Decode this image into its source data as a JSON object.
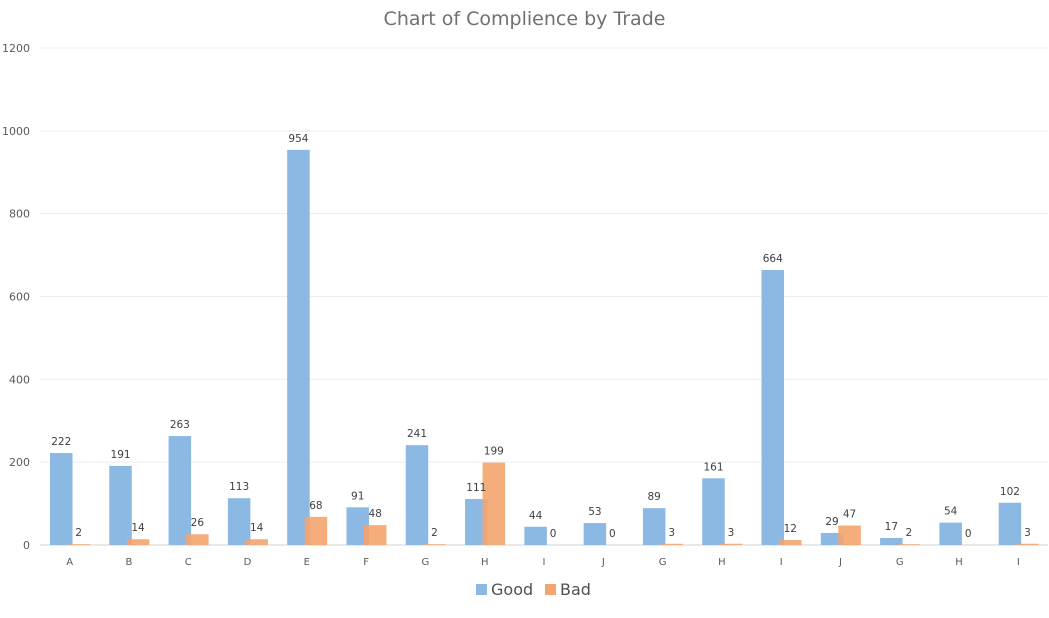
{
  "chart_data": {
    "type": "bar",
    "title": "Chart of Complience by Trade",
    "xlabel": "",
    "ylabel": "",
    "ylim": [
      0,
      1200
    ],
    "yticks": [
      "0",
      "200",
      "400",
      "600",
      "800",
      "1000",
      "1200"
    ],
    "grid": true,
    "legend_position": "bottom",
    "categories": [
      "A",
      "B",
      "C",
      "D",
      "E",
      "F",
      "G",
      "H",
      "I",
      "J",
      "G",
      "H",
      "I",
      "J",
      "G",
      "H",
      "I"
    ],
    "series": [
      {
        "name": "Good",
        "color": "#8cb8e4",
        "values": [
          222,
          191,
          263,
          113,
          954,
          91,
          241,
          111,
          44,
          53,
          89,
          161,
          664,
          29,
          17,
          54,
          102
        ]
      },
      {
        "name": "Bad",
        "color": "#f4a46e",
        "values": [
          2,
          14,
          26,
          14,
          68,
          48,
          2,
          199,
          0,
          0,
          3,
          3,
          12,
          47,
          2,
          0,
          3
        ]
      }
    ]
  }
}
